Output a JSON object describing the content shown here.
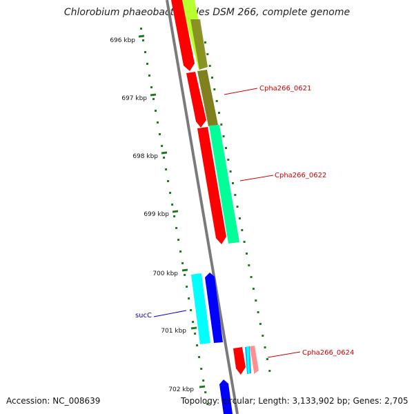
{
  "title": "Chlorobium phaeobacteroides DSM 266, complete genome",
  "ticks": [
    "696 kbp",
    "697 kbp",
    "698 kbp",
    "699 kbp",
    "700 kbp",
    "701 kbp",
    "702 kbp"
  ],
  "gene_labels": {
    "g0621": "Cpha266_0621",
    "g0622": "Cpha266_0622",
    "sucC": "sucC",
    "g0624": "Cpha266_0624"
  },
  "footer": {
    "accession": "Accession: NC_008639",
    "stats": "Topology: circular; Length: 3,133,902 bp; Genes: 2,705"
  },
  "colors": {
    "backbone": "#7a7a7a",
    "tick": "#1e7a1e",
    "label_red": "#cc0000",
    "label_blue": "#0000cc",
    "gene_red": "#ff0000",
    "gene_cyan": "#00ffff",
    "gene_blue": "#0000ff",
    "gene_olive": "#808020",
    "gene_yellowgreen": "#b8ff30",
    "gene_springgreen": "#00ff99",
    "gene_pink": "#ff9090"
  }
}
